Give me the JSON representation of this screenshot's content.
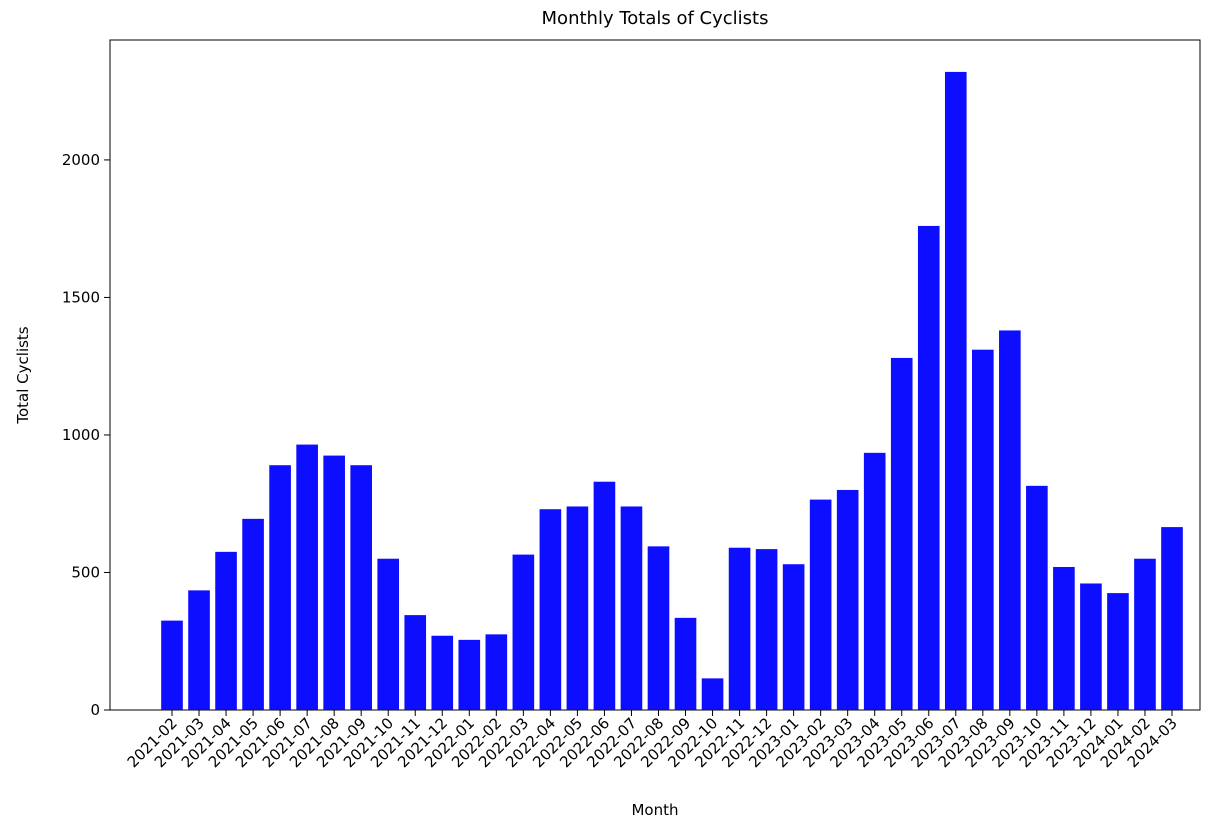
{
  "chart_data": {
    "type": "bar",
    "title": "Monthly Totals of Cyclists",
    "x_label": "Month",
    "y_label": "Total Cyclists",
    "categories": [
      "2021-02",
      "2021-03",
      "2021-04",
      "2021-05",
      "2021-06",
      "2021-07",
      "2021-08",
      "2021-09",
      "2021-10",
      "2021-11",
      "2021-12",
      "2022-01",
      "2022-02",
      "2022-03",
      "2022-04",
      "2022-05",
      "2022-06",
      "2022-07",
      "2022-08",
      "2022-09",
      "2022-10",
      "2022-11",
      "2022-12",
      "2023-01",
      "2023-02",
      "2023-03",
      "2023-04",
      "2023-05",
      "2023-06",
      "2023-07",
      "2023-08",
      "2023-09",
      "2023-10",
      "2023-11",
      "2023-12",
      "2024-01",
      "2024-02",
      "2024-03"
    ],
    "values": [
      325,
      435,
      575,
      695,
      890,
      965,
      925,
      890,
      550,
      345,
      270,
      255,
      275,
      565,
      730,
      740,
      830,
      740,
      595,
      335,
      115,
      590,
      585,
      530,
      765,
      800,
      935,
      1280,
      1760,
      2320,
      1310,
      1380,
      815,
      520,
      460,
      425,
      550,
      665
    ],
    "color": "#0000ff",
    "ylim": [
      0,
      2436
    ],
    "yticks": [
      0,
      500,
      1000,
      1500,
      2000
    ],
    "grid": false
  }
}
